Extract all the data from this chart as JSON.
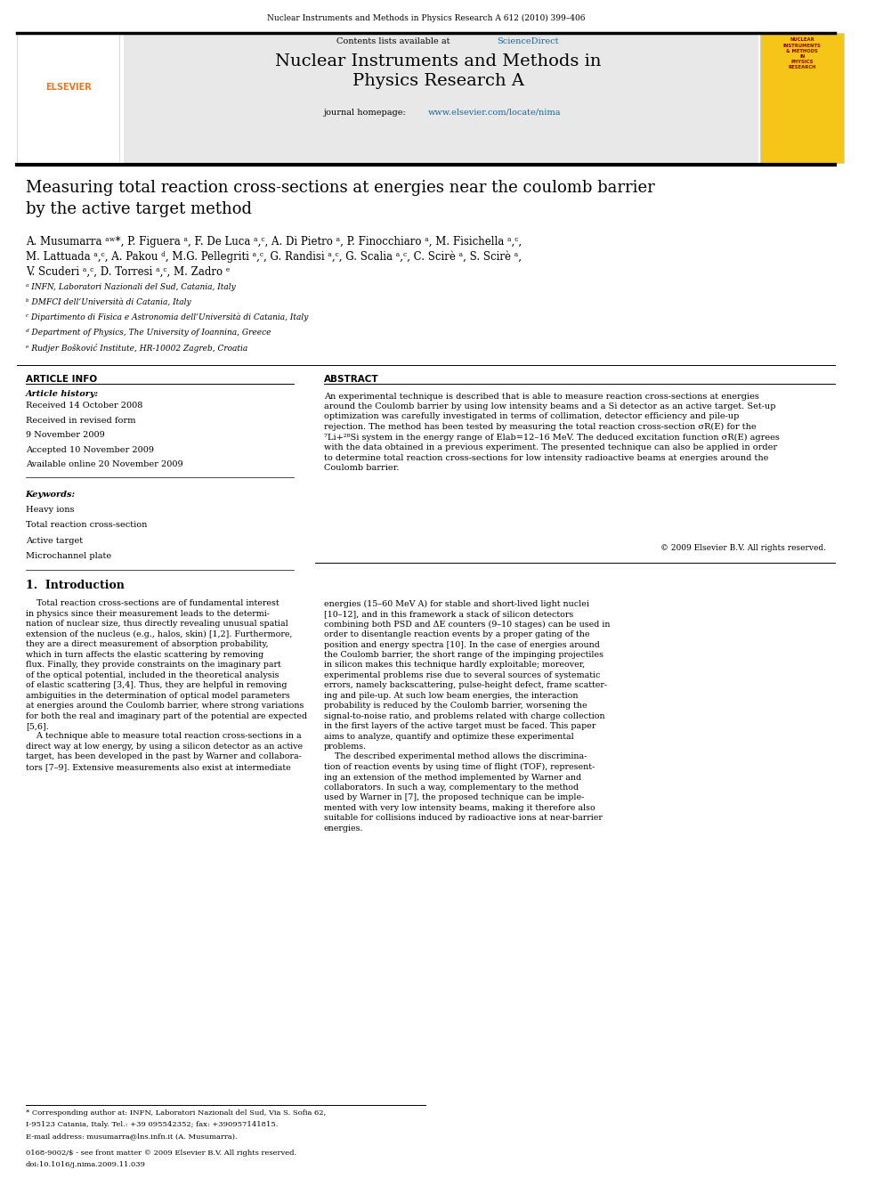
{
  "page_width": 9.92,
  "page_height": 13.23,
  "background_color": "#ffffff",
  "top_journal_line": "Nuclear Instruments and Methods in Physics Research A 612 (2010) 399–406",
  "header_bg": "#e8e8e8",
  "header_sciencedirect_color": "#1a6496",
  "header_homepage_url_color": "#1a6496",
  "article_title": "Measuring total reaction cross-sections at energies near the coulomb barrier\nby the active target method",
  "affiliations": [
    "ᵃ INFN, Laboratori Nazionali del Sud, Catania, Italy",
    "ᵇ DMFCI dell’Università di Catania, Italy",
    "ᶜ Dipartimento di Fisica e Astronomia dell’Università di Catania, Italy",
    "ᵈ Department of Physics, The University of Ioannina, Greece",
    "ᵉ Rudjer Bošković Institute, HR-10002 Zagreb, Croatia"
  ],
  "article_info_title": "ARTICLE INFO",
  "article_history_label": "Article history:",
  "article_history": [
    "Received 14 October 2008",
    "Received in revised form",
    "9 November 2009",
    "Accepted 10 November 2009",
    "Available online 20 November 2009"
  ],
  "keywords_label": "Keywords:",
  "keywords": [
    "Heavy ions",
    "Total reaction cross-section",
    "Active target",
    "Microchannel plate"
  ],
  "abstract_title": "ABSTRACT",
  "abstract_text": "An experimental technique is described that is able to measure reaction cross-sections at energies\naround the Coulomb barrier by using low intensity beams and a Si detector as an active target. Set-up\noptimization was carefully investigated in terms of collimation, detector efficiency and pile-up\nrejection. The method has been tested by measuring the total reaction cross-section σR(E) for the\n⁷Li+²⁸Si system in the energy range of Elab=12–16 MeV. The deduced excitation function σR(E) agrees\nwith the data obtained in a previous experiment. The presented technique can also be applied in order\nto determine total reaction cross-sections for low intensity radioactive beams at energies around the\nCoulomb barrier.",
  "copyright": "© 2009 Elsevier B.V. All rights reserved.",
  "section1_title": "1.  Introduction",
  "intro_col1": "    Total reaction cross-sections are of fundamental interest\nin physics since their measurement leads to the determi-\nnation of nuclear size, thus directly revealing unusual spatial\nextension of the nucleus (e.g., halos, skin) [1,2]. Furthermore,\nthey are a direct measurement of absorption probability,\nwhich in turn affects the elastic scattering by removing\nflux. Finally, they provide constraints on the imaginary part\nof the optical potential, included in the theoretical analysis\nof elastic scattering [3,4]. Thus, they are helpful in removing\nambiguities in the determination of optical model parameters\nat energies around the Coulomb barrier, where strong variations\nfor both the real and imaginary part of the potential are expected\n[5,6].\n    A technique able to measure total reaction cross-sections in a\ndirect way at low energy, by using a silicon detector as an active\ntarget, has been developed in the past by Warner and collabora-\ntors [7–9]. Extensive measurements also exist at intermediate",
  "intro_col2": "energies (15–60 MeV A) for stable and short-lived light nuclei\n[10–12], and in this framework a stack of silicon detectors\ncombining both PSD and ΔE counters (9–10 stages) can be used in\norder to disentangle reaction events by a proper gating of the\nposition and energy spectra [10]. In the case of energies around\nthe Coulomb barrier, the short range of the impinging projectiles\nin silicon makes this technique hardly exploitable; moreover,\nexperimental problems rise due to several sources of systematic\nerrors, namely backscattering, pulse-height defect, frame scatter-\ning and pile-up. At such low beam energies, the interaction\nprobability is reduced by the Coulomb barrier, worsening the\nsignal-to-noise ratio, and problems related with charge collection\nin the first layers of the active target must be faced. This paper\naims to analyze, quantify and optimize these experimental\nproblems.\n    The described experimental method allows the discrimina-\ntion of reaction events by using time of flight (TOF), represent-\ning an extension of the method implemented by Warner and\ncollaborators. In such a way, complementary to the method\nused by Warner in [7], the proposed technique can be imple-\nmented with very low intensity beams, making it therefore also\nsuitable for collisions induced by radioactive ions at near-barrier\nenergies.",
  "footnote1": "* Corresponding author at: INFN, Laboratori Nazionali del Sud, Via S. Sofia 62,",
  "footnote2": "I-95123 Catania, Italy. Tel.: +39 095542352; fax: +390957141815.",
  "footnote3": "E-mail address: musumarra@lns.infn.it (A. Musumarra).",
  "footnote4": "0168-9002/$ - see front matter © 2009 Elsevier B.V. All rights reserved.",
  "footnote5": "doi:10.1016/j.nima.2009.11.039"
}
